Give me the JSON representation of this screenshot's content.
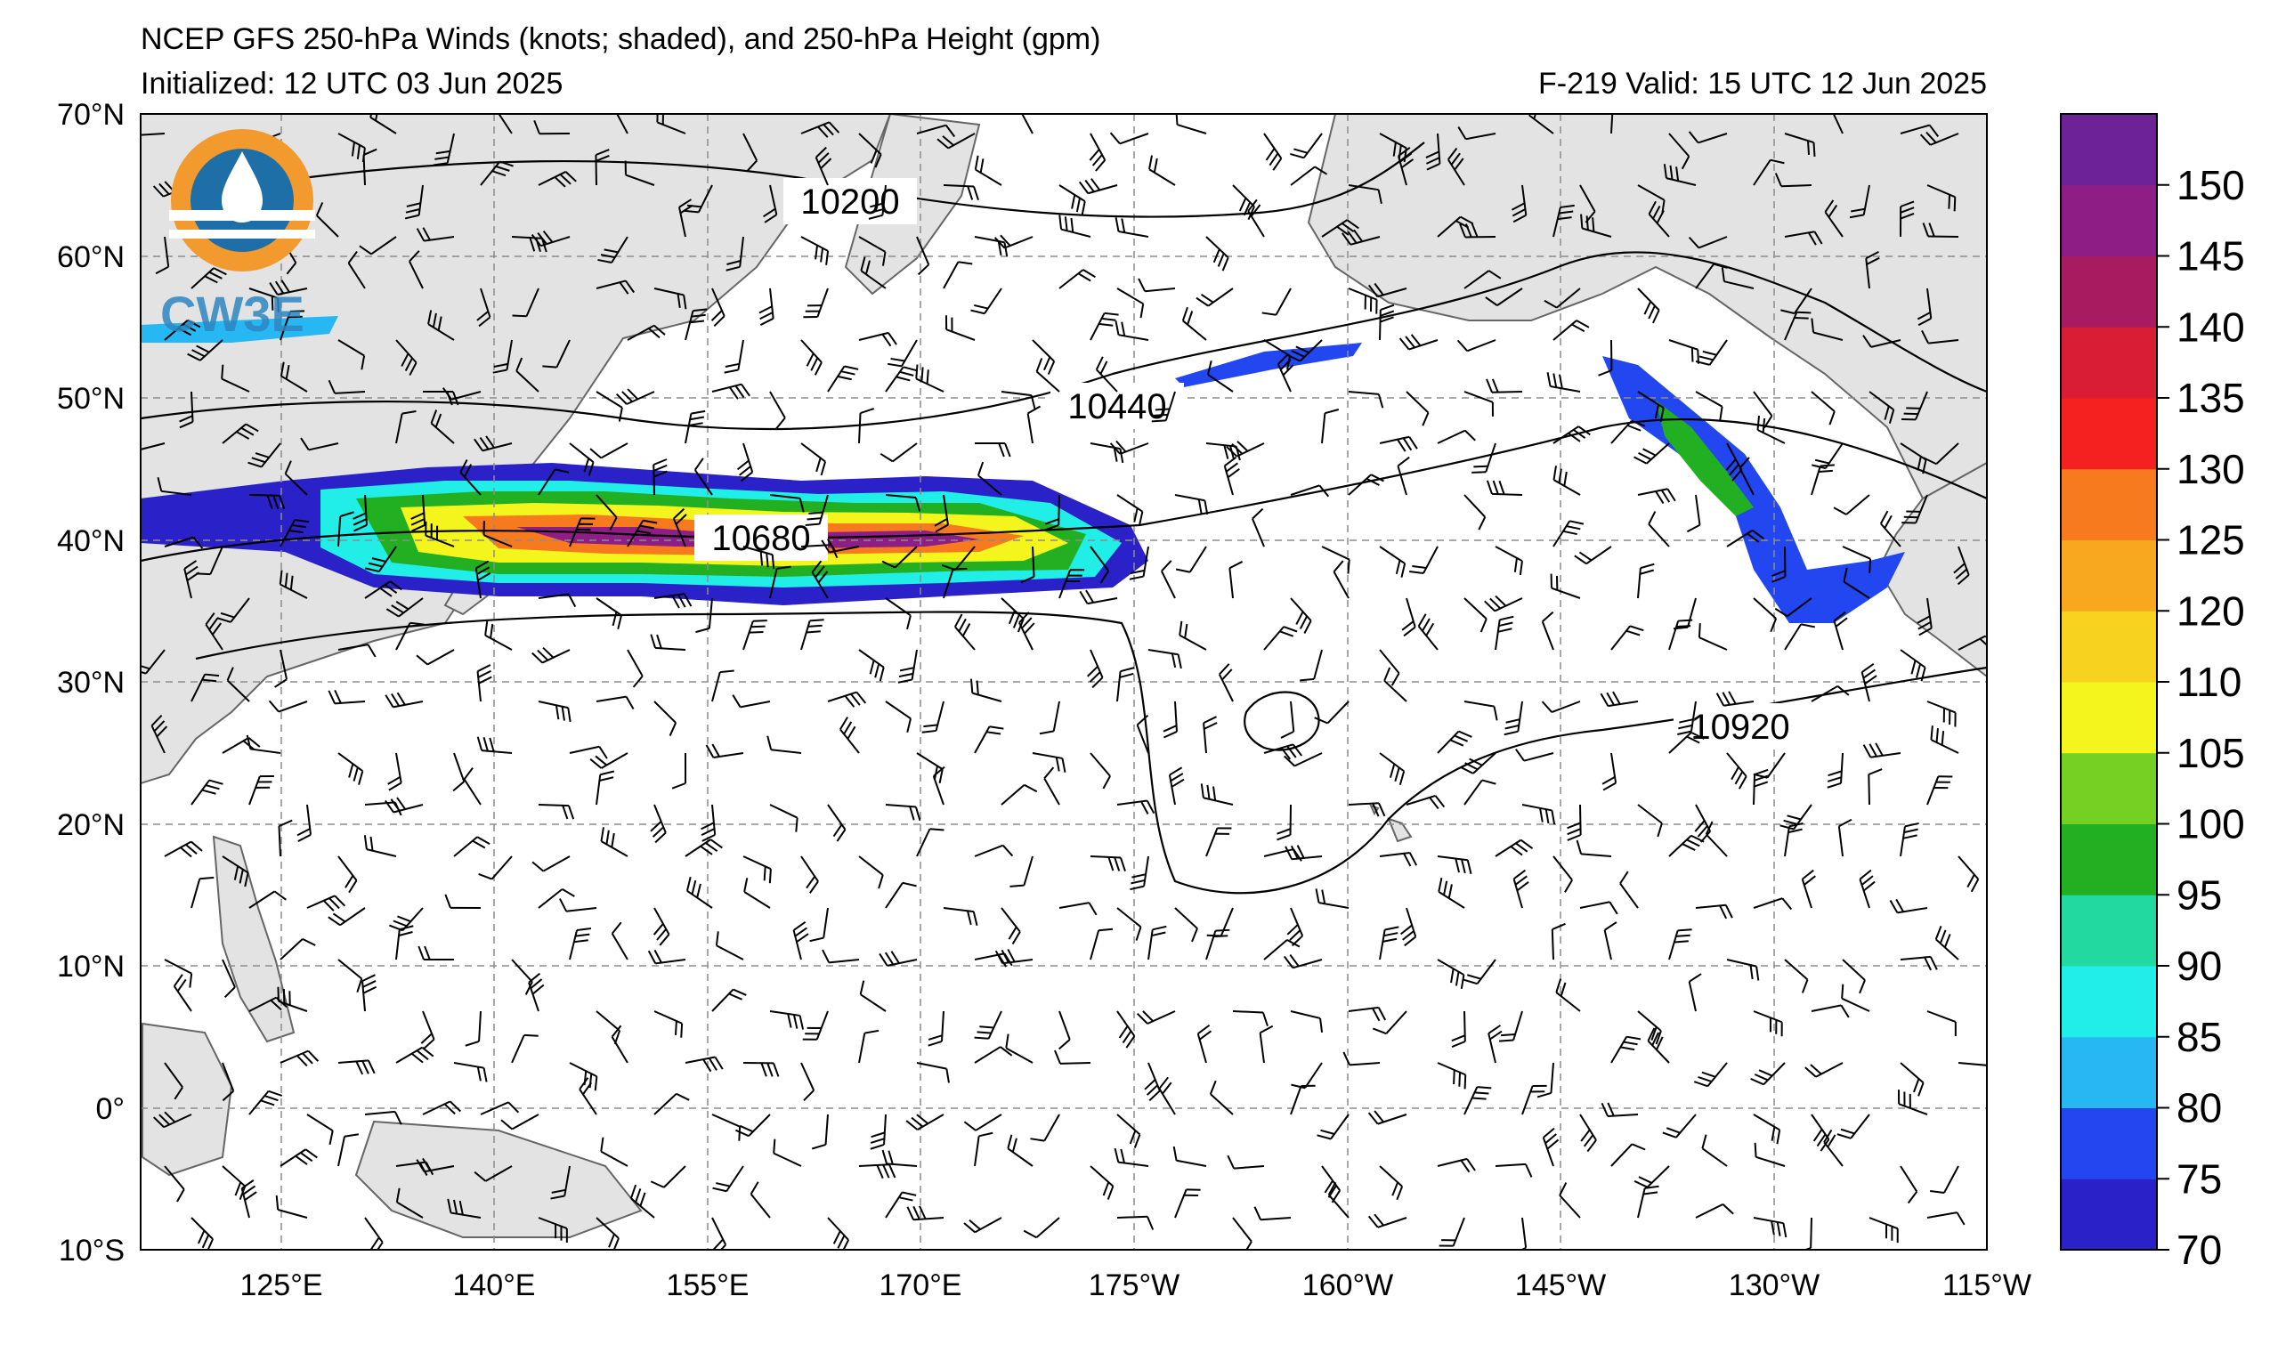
{
  "header": {
    "title": "NCEP GFS 250-hPa Winds (knots; shaded), and 250-hPa Height (gpm)",
    "initialized": "Initialized: 12 UTC 03 Jun 2025",
    "valid": "F-219  Valid: 15 UTC 12 Jun 2025"
  },
  "logo": {
    "text": "CW3E"
  },
  "map": {
    "lat_labels": [
      "70°N",
      "60°N",
      "50°N",
      "40°N",
      "30°N",
      "20°N",
      "10°N",
      "0°",
      "10°S"
    ],
    "lon_labels": [
      "125°E",
      "140°E",
      "155°E",
      "170°E",
      "175°W",
      "160°W",
      "145°W",
      "130°W",
      "115°W"
    ],
    "lat_values": [
      70,
      60,
      50,
      40,
      30,
      20,
      10,
      0,
      -10
    ],
    "lon_values": [
      125,
      140,
      155,
      170,
      185,
      200,
      215,
      230,
      245
    ],
    "extent": {
      "lon_min": 116,
      "lon_max": 245,
      "lat_min": -10,
      "lat_max": 70
    },
    "height_contours": [
      {
        "label": "10200",
        "value": 10200
      },
      {
        "label": "10440",
        "value": 10440
      },
      {
        "label": "10680",
        "value": 10680
      },
      {
        "label": "10920",
        "value": 10920
      }
    ],
    "land_color": "#e3e3e3",
    "grid_color": "#8c8c8c"
  },
  "colorbar": {
    "ticks": [
      "70",
      "75",
      "80",
      "85",
      "90",
      "95",
      "100",
      "105",
      "110",
      "120",
      "125",
      "130",
      "135",
      "140",
      "145",
      "150"
    ],
    "colors": [
      "#2a22c8",
      "#2247f0",
      "#27b7f2",
      "#22eee8",
      "#22d9a0",
      "#22b022",
      "#74d022",
      "#f5f51e",
      "#f7d21e",
      "#f7a81e",
      "#f77a1e",
      "#f52020",
      "#d81d35",
      "#a81b60",
      "#8e1e86",
      "#6d2297"
    ]
  }
}
